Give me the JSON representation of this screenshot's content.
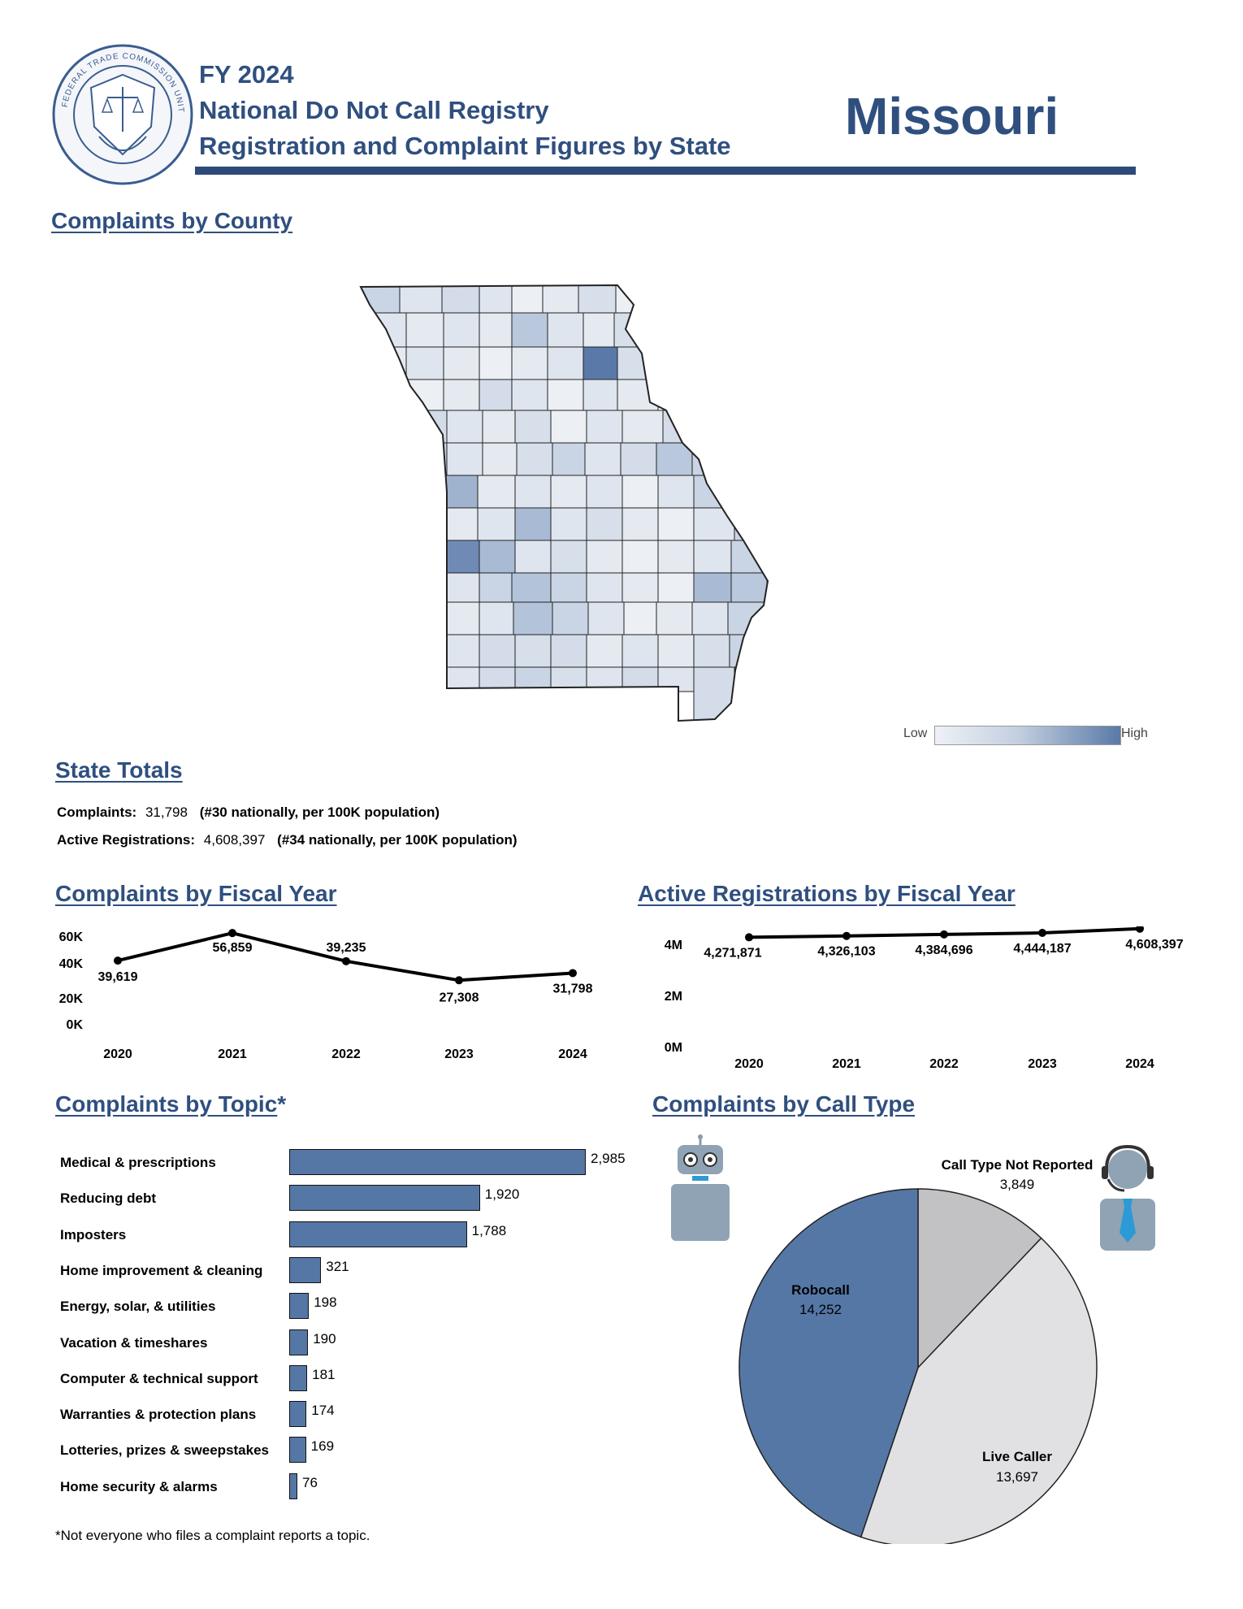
{
  "header": {
    "seal_text": "FEDERAL TRADE COMMISSION UNITED STATES OF AMERICA MCMXV",
    "line1": "FY 2024",
    "line2": "National Do Not Call Registry",
    "line3": "Registration and Complaint Figures by State",
    "state": "Missouri"
  },
  "county_map": {
    "title": "Complaints by County",
    "legend_low": "Low",
    "legend_high": "High",
    "colors": {
      "low": "#eceff4",
      "high": "#5a79a8",
      "border": "#222222"
    }
  },
  "state_totals": {
    "title": "State Totals",
    "complaints_label": "Complaints:",
    "complaints_value": "31,798",
    "complaints_rank": "(#30 nationally, per 100K population)",
    "registrations_label": "Active Registrations:",
    "registrations_value": "4,608,397",
    "registrations_rank": "(#34 nationally, per 100K population)"
  },
  "complaints_by_year": {
    "title": "Complaints by Fiscal Year",
    "chart_data": {
      "type": "line",
      "x": [
        "2020",
        "2021",
        "2022",
        "2023",
        "2024"
      ],
      "values": [
        39619,
        56859,
        39235,
        27308,
        31798
      ],
      "labels": [
        "39,619",
        "56,859",
        "39,235",
        "27,308",
        "31,798"
      ],
      "yticks": [
        "60K",
        "40K",
        "20K",
        "0K"
      ],
      "ytick_values": [
        60000,
        40000,
        20000,
        0
      ],
      "ylim": [
        0,
        60000
      ]
    }
  },
  "registrations_by_year": {
    "title": "Active Registrations by Fiscal Year",
    "chart_data": {
      "type": "line",
      "x": [
        "2020",
        "2021",
        "2022",
        "2023",
        "2024"
      ],
      "values": [
        4271871,
        4326103,
        4384696,
        4444187,
        4608397
      ],
      "labels": [
        "4,271,871",
        "4,326,103",
        "4,384,696",
        "4,444,187",
        "4,608,397"
      ],
      "yticks": [
        "4M",
        "2M",
        "0M"
      ],
      "ytick_values": [
        4000000,
        2000000,
        0
      ],
      "ylim": [
        0,
        4000000
      ]
    }
  },
  "topics": {
    "title": "Complaints by Topic",
    "title_mark": "*",
    "chart_data": {
      "type": "bar",
      "categories": [
        "Medical & prescriptions",
        "Reducing debt",
        "Imposters",
        "Home improvement & cleaning",
        "Energy, solar, & utilities",
        "Vacation & timeshares",
        "Computer & technical support",
        "Warranties & protection plans",
        "Lotteries, prizes & sweepstakes",
        "Home security & alarms"
      ],
      "values": [
        2985,
        1920,
        1788,
        321,
        198,
        190,
        181,
        174,
        169,
        76
      ],
      "labels": [
        "2,985",
        "1,920",
        "1,788",
        "321",
        "198",
        "190",
        "181",
        "174",
        "169",
        "76"
      ],
      "max": 2985
    },
    "footnote": "*Not everyone who files a complaint reports a topic."
  },
  "call_type": {
    "title": "Complaints by Call Type",
    "robot_icon": "robot-icon",
    "person_icon": "call-center-agent-icon",
    "chart_data": {
      "type": "pie",
      "slices": [
        {
          "name": "Call Type Not Reported",
          "value": 3849,
          "label": "3,849",
          "color": "#c2c2c4"
        },
        {
          "name": "Live Caller",
          "value": 13697,
          "label": "13,697",
          "color": "#e1e0e2"
        },
        {
          "name": "Robocall",
          "value": 14252,
          "label": "14,252",
          "color": "#5577a6"
        }
      ]
    }
  }
}
